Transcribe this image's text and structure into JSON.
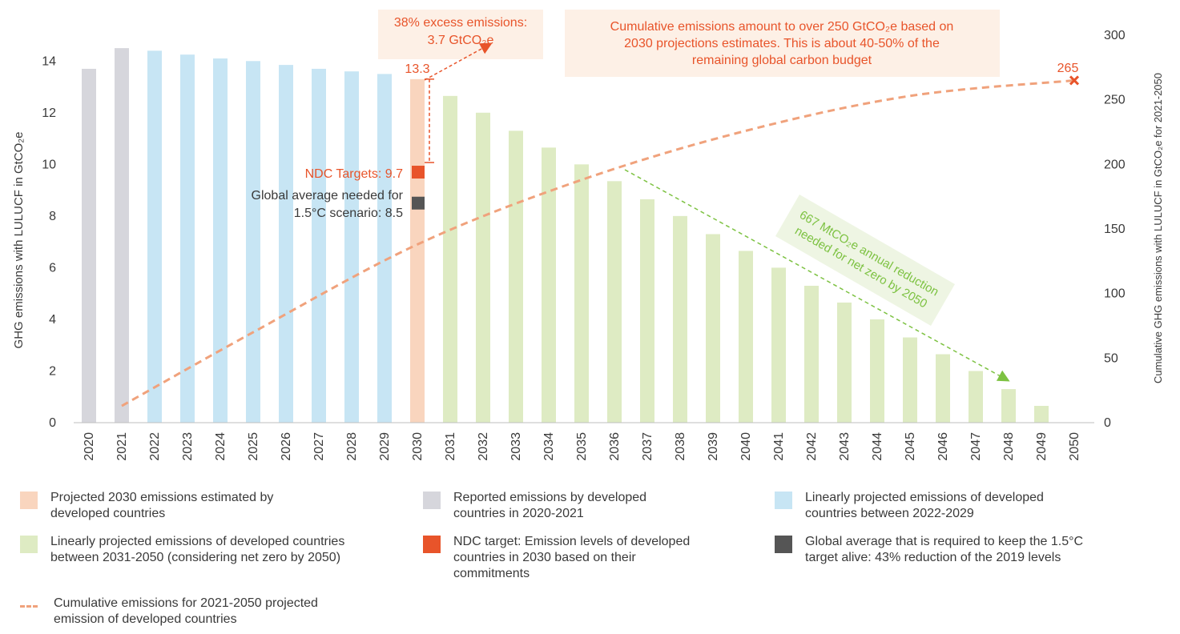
{
  "chart_data": {
    "type": "bar",
    "categories": [
      "2020",
      "2021",
      "2022",
      "2023",
      "2024",
      "2025",
      "2026",
      "2027",
      "2028",
      "2029",
      "2030",
      "2031",
      "2032",
      "2033",
      "2034",
      "2035",
      "2036",
      "2037",
      "2038",
      "2039",
      "2040",
      "2041",
      "2042",
      "2043",
      "2044",
      "2045",
      "2046",
      "2047",
      "2048",
      "2049",
      "2050"
    ],
    "values": [
      13.7,
      14.5,
      14.4,
      14.25,
      14.1,
      14.0,
      13.85,
      13.7,
      13.6,
      13.5,
      13.3,
      12.65,
      12.0,
      11.3,
      10.65,
      10.0,
      9.35,
      8.65,
      8.0,
      7.3,
      6.65,
      6.0,
      5.3,
      4.65,
      4.0,
      3.3,
      2.65,
      2.0,
      1.3,
      0.65,
      0
    ],
    "groups": [
      "reported",
      "reported",
      "linear_2022_2029",
      "linear_2022_2029",
      "linear_2022_2029",
      "linear_2022_2029",
      "linear_2022_2029",
      "linear_2022_2029",
      "linear_2022_2029",
      "linear_2022_2029",
      "projected_2030",
      "linear_2031_2050",
      "linear_2031_2050",
      "linear_2031_2050",
      "linear_2031_2050",
      "linear_2031_2050",
      "linear_2031_2050",
      "linear_2031_2050",
      "linear_2031_2050",
      "linear_2031_2050",
      "linear_2031_2050",
      "linear_2031_2050",
      "linear_2031_2050",
      "linear_2031_2050",
      "linear_2031_2050",
      "linear_2031_2050",
      "linear_2031_2050",
      "linear_2031_2050",
      "linear_2031_2050",
      "linear_2031_2050",
      "linear_2031_2050"
    ],
    "colors": {
      "reported": "#d6d6dc",
      "linear_2022_2029": "#c7e5f4",
      "projected_2030": "#f9d5be",
      "linear_2031_2050": "#deebc3",
      "ndc": "#e8542a",
      "global": "#555555",
      "cumulative": "#f0a27c",
      "annotation_orange": "#e8542a",
      "annotation_green": "#7dc242"
    },
    "ylabel": "GHG emissions with LULUCF in GtCO₂e",
    "ylim": [
      0,
      15
    ],
    "yticks": [
      0,
      2,
      4,
      6,
      8,
      10,
      12,
      14
    ],
    "y2label": "Cumulative GHG emissions with LULUCF in GtCO₂e for 2021-2050",
    "y2lim": [
      0,
      300
    ],
    "y2ticks": [
      0,
      50,
      100,
      150,
      200,
      250,
      300
    ],
    "cumulative_line": {
      "x": [
        "2021",
        "2025",
        "2030",
        "2035",
        "2040",
        "2045",
        "2050"
      ],
      "values": [
        13,
        70,
        138,
        188,
        226,
        253,
        265
      ]
    },
    "markers": {
      "ndc_target": 9.7,
      "global_average": 8.5
    },
    "grid": false
  },
  "annotations": {
    "bar_2030_label": "13.3",
    "excess_line1": "38% excess emissions:",
    "excess_line2": "3.7 GtCO₂e",
    "cumulative_box_line1": "Cumulative emissions amount to over 250 GtCO₂e based on",
    "cumulative_box_line2": "2030 projections estimates. This is about 40-50% of the",
    "cumulative_box_line3": "remaining global carbon budget",
    "end_value": "265",
    "ndc_label": "NDC Targets: 9.7",
    "global_line1": "Global average needed for",
    "global_line2": "1.5°C scenario: 8.5",
    "reduction_line1": "667 MtCO₂e annual reduction",
    "reduction_line2": "needed for net zero by 2050"
  },
  "legend": [
    {
      "key": "projected_2030",
      "line1": "Projected 2030 emissions estimated by",
      "line2": "developed countries",
      "line3": ""
    },
    {
      "key": "reported",
      "line1": "Reported emissions by developed",
      "line2": "countries in 2020-2021",
      "line3": ""
    },
    {
      "key": "linear_2022_2029",
      "line1": "Linearly projected emissions of developed",
      "line2": "countries between 2022-2029",
      "line3": ""
    },
    {
      "key": "linear_2031_2050",
      "line1": "Linearly projected emissions of developed countries",
      "line2": "between 2031-2050 (considering net zero by 2050)",
      "line3": ""
    },
    {
      "key": "ndc",
      "line1": "NDC target: Emission levels of  developed",
      "line2": "countries in 2030 based on their",
      "line3": "commitments"
    },
    {
      "key": "global",
      "line1": "Global average that is required to keep the 1.5°C",
      "line2": "target alive:  43% reduction of the 2019 levels",
      "line3": ""
    },
    {
      "key": "cumulative",
      "line1": "Cumulative emissions for 2021-2050 projected",
      "line2": "emission of developed countries",
      "line3": ""
    }
  ]
}
